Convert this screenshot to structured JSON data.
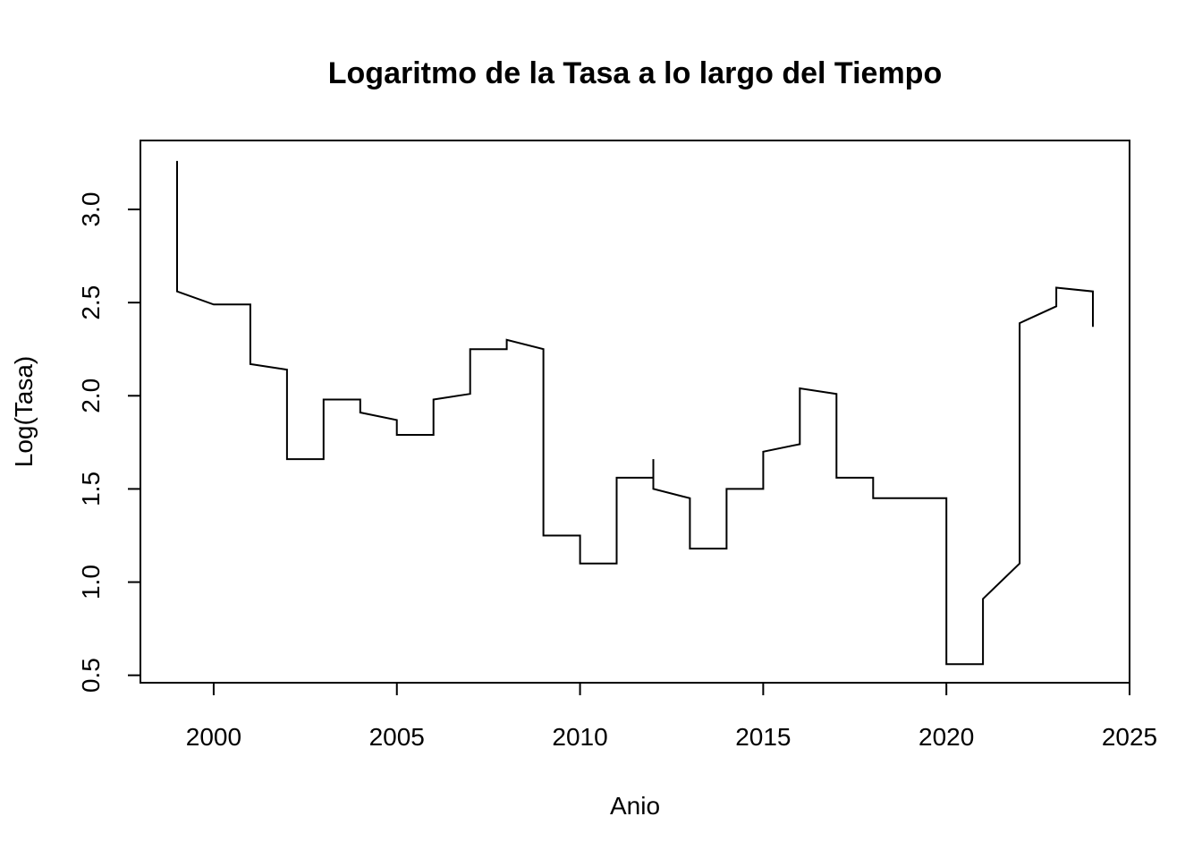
{
  "chart_data": {
    "type": "line",
    "title": "Logaritmo de la Tasa a lo largo del Tiempo",
    "xlabel": "Anio",
    "ylabel": "Log(Tasa)",
    "xlim": [
      1998,
      2025
    ],
    "ylim": [
      0.46,
      3.37
    ],
    "xticks": [
      2000,
      2005,
      2010,
      2015,
      2020,
      2025
    ],
    "xtick_labels": [
      "2000",
      "2005",
      "2010",
      "2015",
      "2020",
      "2025"
    ],
    "yticks": [
      0.5,
      1.0,
      1.5,
      2.0,
      2.5,
      3.0
    ],
    "ytick_labels": [
      "0.5",
      "1.0",
      "1.5",
      "2.0",
      "2.5",
      "3.0"
    ],
    "grid": false,
    "line_color": "#000000",
    "series": [
      {
        "x": [
          1999,
          1999,
          2000,
          2001,
          2001,
          2002,
          2002,
          2003,
          2003,
          2004,
          2004,
          2005,
          2005,
          2006,
          2006,
          2007,
          2007,
          2008,
          2008,
          2009,
          2009,
          2010,
          2010,
          2011,
          2011,
          2012,
          2012,
          2012,
          2013,
          2013,
          2014,
          2014,
          2015,
          2015,
          2016,
          2016,
          2017,
          2017,
          2018,
          2018,
          2019,
          2020,
          2020,
          2021,
          2021,
          2022,
          2022,
          2023,
          2023,
          2024,
          2024
        ],
        "y": [
          3.26,
          2.56,
          2.49,
          2.49,
          2.17,
          2.14,
          1.66,
          1.66,
          1.98,
          1.98,
          1.91,
          1.87,
          1.79,
          1.79,
          1.98,
          2.01,
          2.25,
          2.25,
          2.3,
          2.25,
          1.25,
          1.25,
          1.1,
          1.1,
          1.56,
          1.56,
          1.66,
          1.5,
          1.45,
          1.18,
          1.18,
          1.5,
          1.5,
          1.7,
          1.74,
          2.04,
          2.01,
          1.56,
          1.56,
          1.45,
          1.45,
          1.45,
          0.56,
          0.56,
          0.91,
          1.1,
          2.39,
          2.48,
          2.58,
          2.56,
          2.37
        ]
      }
    ]
  }
}
